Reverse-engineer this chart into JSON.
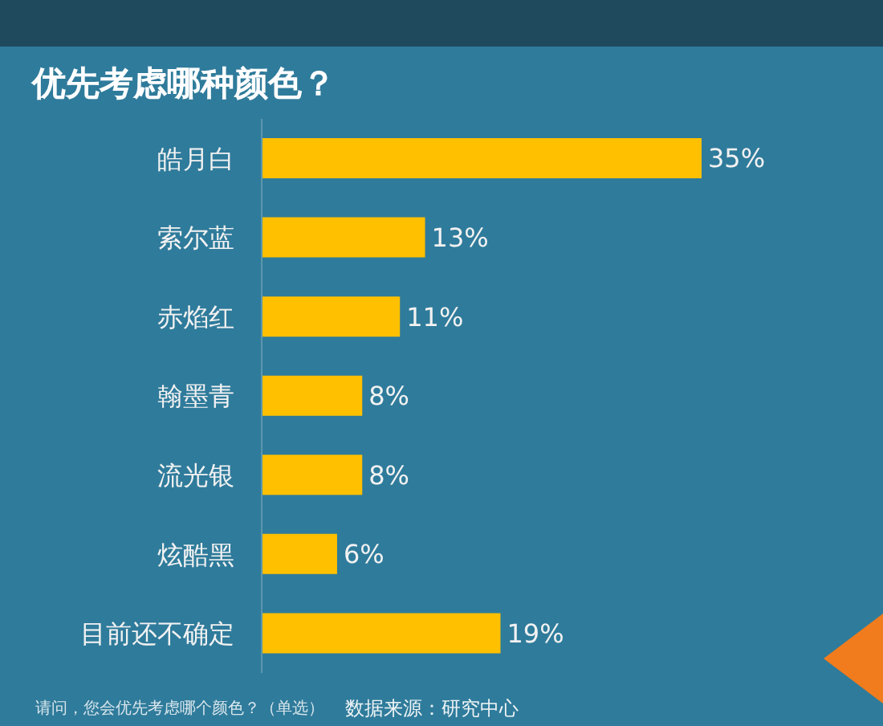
{
  "chart_data": {
    "type": "bar",
    "orientation": "horizontal",
    "title": "优先考虑哪种颜色？",
    "categories": [
      "皓月白",
      "索尔蓝",
      "赤焰红",
      "翰墨青",
      "流光银",
      "炫酷黑",
      "目前还不确定"
    ],
    "values": [
      35,
      13,
      11,
      8,
      8,
      6,
      19
    ],
    "value_labels": [
      "35%",
      "13%",
      "11%",
      "8%",
      "8%",
      "6%",
      "19%"
    ],
    "color": "#ffc000",
    "annotations": [
      "请问，您会优先考虑哪个颜色？（单选）",
      "数据来源：研究中心"
    ]
  }
}
